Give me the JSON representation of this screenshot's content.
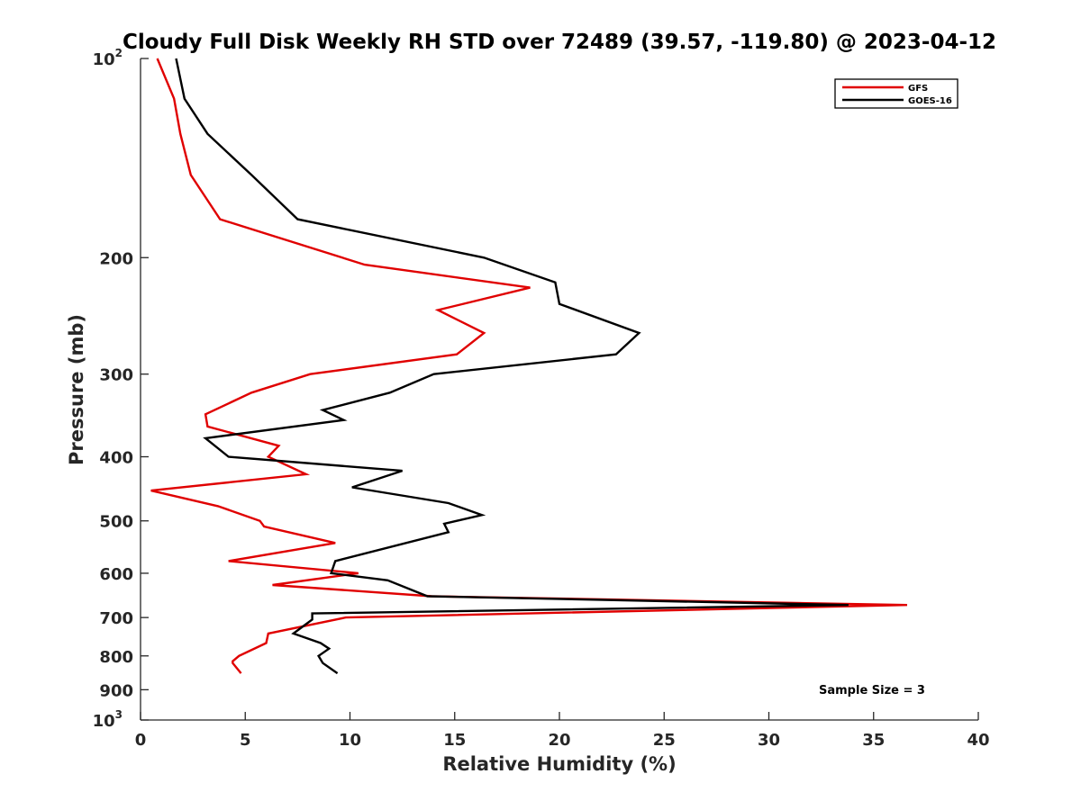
{
  "chart_data": {
    "type": "line",
    "title": "Cloudy Full Disk Weekly RH STD over 72489 (39.57, -119.80) @ 2023-04-12",
    "xlabel": "Relative Humidity (%)",
    "ylabel": "Pressure (mb)",
    "xlim": [
      0,
      40
    ],
    "ylim": [
      100,
      1000
    ],
    "y_scale": "log",
    "y_reversed": true,
    "grid": false,
    "legend_position": "top-right",
    "x_ticks": [
      "0",
      "5",
      "10",
      "15",
      "20",
      "25",
      "30",
      "35",
      "40"
    ],
    "y_ticks": [
      {
        "value": 100,
        "base": "10",
        "exp": "2"
      },
      {
        "value": 200,
        "label": "200"
      },
      {
        "value": 300,
        "label": "300"
      },
      {
        "value": 400,
        "label": "400"
      },
      {
        "value": 500,
        "label": "500"
      },
      {
        "value": 600,
        "label": "600"
      },
      {
        "value": 700,
        "label": "700"
      },
      {
        "value": 800,
        "label": "800"
      },
      {
        "value": 900,
        "label": "900"
      },
      {
        "value": 1000,
        "base": "10",
        "exp": "3"
      }
    ],
    "series": [
      {
        "name": "GFS",
        "color": "#e00000",
        "points": [
          [
            0.8,
            100
          ],
          [
            1.6,
            115
          ],
          [
            1.9,
            130
          ],
          [
            2.4,
            150
          ],
          [
            3.8,
            175
          ],
          [
            10.7,
            205
          ],
          [
            18.6,
            222
          ],
          [
            14.2,
            240
          ],
          [
            16.4,
            260
          ],
          [
            15.1,
            280
          ],
          [
            8.1,
            300
          ],
          [
            5.3,
            320
          ],
          [
            3.1,
            345
          ],
          [
            3.2,
            360
          ],
          [
            6.6,
            385
          ],
          [
            6.1,
            400
          ],
          [
            7.9,
            425
          ],
          [
            0.5,
            450
          ],
          [
            3.7,
            475
          ],
          [
            5.7,
            500
          ],
          [
            5.9,
            510
          ],
          [
            9.3,
            540
          ],
          [
            4.2,
            575
          ],
          [
            10.4,
            600
          ],
          [
            6.3,
            625
          ],
          [
            13.9,
            650
          ],
          [
            36.6,
            670
          ],
          [
            9.8,
            700
          ],
          [
            6.1,
            740
          ],
          [
            6.0,
            765
          ],
          [
            4.7,
            800
          ],
          [
            4.4,
            815
          ],
          [
            4.4,
            820
          ],
          [
            4.6,
            835
          ],
          [
            4.8,
            850
          ]
        ]
      },
      {
        "name": "GOES-16",
        "color": "#000000",
        "points": [
          [
            1.7,
            100
          ],
          [
            2.1,
            115
          ],
          [
            3.2,
            130
          ],
          [
            5.3,
            150
          ],
          [
            7.5,
            175
          ],
          [
            16.4,
            200
          ],
          [
            19.8,
            218
          ],
          [
            20.0,
            235
          ],
          [
            23.8,
            260
          ],
          [
            22.7,
            280
          ],
          [
            14.0,
            300
          ],
          [
            11.9,
            320
          ],
          [
            8.7,
            340
          ],
          [
            9.7,
            352
          ],
          [
            3.1,
            375
          ],
          [
            4.2,
            400
          ],
          [
            12.5,
            420
          ],
          [
            10.1,
            445
          ],
          [
            14.7,
            470
          ],
          [
            16.3,
            490
          ],
          [
            14.5,
            505
          ],
          [
            14.7,
            520
          ],
          [
            9.3,
            575
          ],
          [
            9.1,
            600
          ],
          [
            11.8,
            615
          ],
          [
            13.7,
            650
          ],
          [
            33.8,
            670
          ],
          [
            8.2,
            690
          ],
          [
            8.2,
            705
          ],
          [
            7.3,
            740
          ],
          [
            8.6,
            765
          ],
          [
            9.0,
            780
          ],
          [
            8.5,
            800
          ],
          [
            8.7,
            820
          ],
          [
            9.4,
            850
          ]
        ]
      }
    ],
    "annotations": [
      "Sample Size = 3"
    ]
  }
}
